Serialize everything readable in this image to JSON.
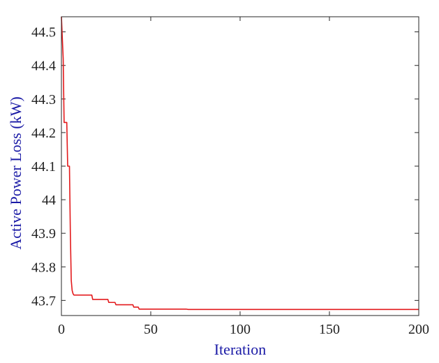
{
  "chart_data": {
    "type": "line",
    "title": "",
    "xlabel": "Iteration",
    "ylabel": "Active Power Loss (kW)",
    "xlim": [
      0,
      200
    ],
    "ylim": [
      43.655,
      44.545
    ],
    "xticks": [
      0,
      50,
      100,
      150,
      200
    ],
    "xtick_labels": [
      "0",
      "50",
      "100",
      "150",
      "200"
    ],
    "yticks": [
      43.7,
      43.8,
      43.9,
      44.0,
      44.1,
      44.2,
      44.3,
      44.4,
      44.5
    ],
    "ytick_labels": [
      "43.7",
      "43.8",
      "43.9",
      "44",
      "44.1",
      "44.2",
      "44.3",
      "44.4",
      "44.5"
    ],
    "grid": false,
    "legend": "none",
    "series": [
      {
        "color": "#e31a1c",
        "x": [
          0,
          1,
          1.5,
          2,
          3,
          3.5,
          4,
          4.5,
          5,
          5.5,
          6,
          6.5,
          7,
          8,
          17,
          17.5,
          26,
          26.5,
          30,
          30.5,
          40,
          40.5,
          43,
          43.5,
          70,
          71,
          200
        ],
        "y": [
          44.545,
          44.42,
          44.23,
          44.23,
          44.23,
          44.1,
          44.1,
          44.1,
          43.9,
          43.76,
          43.73,
          43.72,
          43.716,
          43.716,
          43.716,
          43.703,
          43.703,
          43.694,
          43.694,
          43.687,
          43.687,
          43.68,
          43.68,
          43.674,
          43.674,
          43.673,
          43.673
        ]
      }
    ],
    "axis_label_color": "#1a1aa6"
  }
}
